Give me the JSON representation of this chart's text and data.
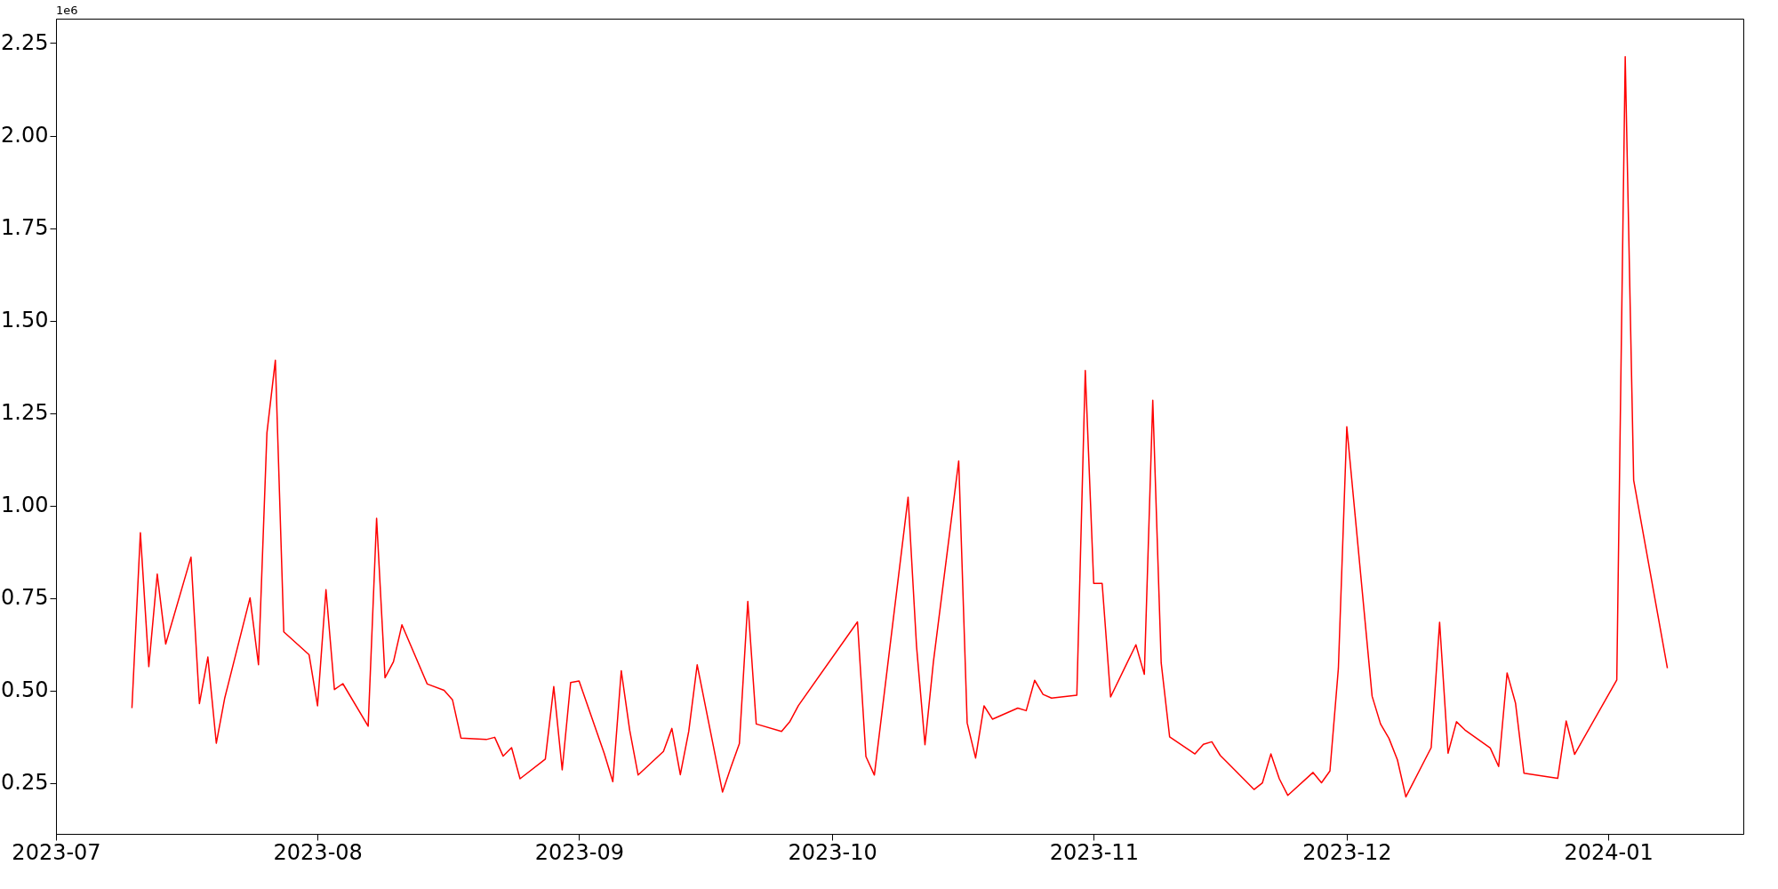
{
  "chart_data": {
    "type": "line",
    "x": [
      "2023-07-10",
      "2023-07-11",
      "2023-07-12",
      "2023-07-13",
      "2023-07-14",
      "2023-07-17",
      "2023-07-18",
      "2023-07-19",
      "2023-07-20",
      "2023-07-21",
      "2023-07-24",
      "2023-07-25",
      "2023-07-26",
      "2023-07-27",
      "2023-07-28",
      "2023-07-31",
      "2023-08-01",
      "2023-08-02",
      "2023-08-03",
      "2023-08-04",
      "2023-08-07",
      "2023-08-08",
      "2023-08-09",
      "2023-08-10",
      "2023-08-11",
      "2023-08-14",
      "2023-08-16",
      "2023-08-17",
      "2023-08-18",
      "2023-08-21",
      "2023-08-22",
      "2023-08-23",
      "2023-08-24",
      "2023-08-25",
      "2023-08-28",
      "2023-08-29",
      "2023-08-30",
      "2023-08-31",
      "2023-09-01",
      "2023-09-04",
      "2023-09-05",
      "2023-09-06",
      "2023-09-07",
      "2023-09-08",
      "2023-09-11",
      "2023-09-12",
      "2023-09-13",
      "2023-09-14",
      "2023-09-15",
      "2023-09-18",
      "2023-09-19",
      "2023-09-20",
      "2023-09-21",
      "2023-09-22",
      "2023-09-25",
      "2023-09-26",
      "2023-09-27",
      "2023-10-04",
      "2023-10-05",
      "2023-10-06",
      "2023-10-10",
      "2023-10-11",
      "2023-10-12",
      "2023-10-13",
      "2023-10-16",
      "2023-10-17",
      "2023-10-18",
      "2023-10-19",
      "2023-10-20",
      "2023-10-23",
      "2023-10-24",
      "2023-10-25",
      "2023-10-26",
      "2023-10-27",
      "2023-10-30",
      "2023-10-31",
      "2023-11-01",
      "2023-11-02",
      "2023-11-03",
      "2023-11-06",
      "2023-11-07",
      "2023-11-08",
      "2023-11-09",
      "2023-11-10",
      "2023-11-13",
      "2023-11-14",
      "2023-11-15",
      "2023-11-16",
      "2023-11-17",
      "2023-11-20",
      "2023-11-21",
      "2023-11-22",
      "2023-11-23",
      "2023-11-24",
      "2023-11-27",
      "2023-11-28",
      "2023-11-29",
      "2023-11-30",
      "2023-12-01",
      "2023-12-04",
      "2023-12-05",
      "2023-12-06",
      "2023-12-07",
      "2023-12-08",
      "2023-12-11",
      "2023-12-12",
      "2023-12-13",
      "2023-12-14",
      "2023-12-15",
      "2023-12-18",
      "2023-12-19",
      "2023-12-20",
      "2023-12-21",
      "2023-12-22",
      "2023-12-26",
      "2023-12-27",
      "2023-12-28",
      "2024-01-02",
      "2024-01-03",
      "2024-01-04",
      "2024-01-08"
    ],
    "series": [
      {
        "color": "#ff0000",
        "values": [
          0.453,
          0.927,
          0.565,
          0.815,
          0.626,
          0.861,
          0.465,
          0.591,
          0.358,
          0.48,
          0.751,
          0.57,
          1.196,
          1.393,
          0.659,
          0.597,
          0.459,
          0.773,
          0.503,
          0.519,
          0.404,
          0.966,
          0.535,
          0.578,
          0.678,
          0.518,
          0.501,
          0.475,
          0.372,
          0.368,
          0.374,
          0.323,
          0.346,
          0.262,
          0.315,
          0.511,
          0.286,
          0.522,
          0.526,
          0.329,
          0.254,
          0.554,
          0.393,
          0.272,
          0.336,
          0.398,
          0.273,
          0.39,
          0.57,
          0.226,
          0.293,
          0.357,
          0.741,
          0.41,
          0.39,
          0.417,
          0.46,
          0.686,
          0.322,
          0.272,
          1.023,
          0.62,
          0.354,
          0.578,
          1.121,
          0.413,
          0.318,
          0.459,
          0.423,
          0.453,
          0.446,
          0.528,
          0.49,
          0.48,
          0.488,
          1.365,
          0.79,
          0.79,
          0.483,
          0.624,
          0.544,
          1.285,
          0.575,
          0.375,
          0.329,
          0.355,
          0.362,
          0.325,
          0.302,
          0.233,
          0.251,
          0.329,
          0.262,
          0.217,
          0.279,
          0.251,
          0.283,
          0.56,
          1.213,
          0.485,
          0.41,
          0.371,
          0.313,
          0.213,
          0.346,
          0.685,
          0.331,
          0.416,
          0.394,
          0.345,
          0.295,
          0.548,
          0.466,
          0.277,
          0.263,
          0.418,
          0.328,
          0.529,
          2.213,
          1.069,
          0.561
        ]
      }
    ],
    "xlim": [
      "2023-07-01",
      "2024-01-17"
    ],
    "xticks": [
      "2023-07",
      "2023-08",
      "2023-09",
      "2023-10",
      "2023-11",
      "2023-12",
      "2024-01"
    ],
    "ylim": [
      0.113,
      2.316
    ],
    "yticks": [
      0.25,
      {
        "value": 0.5,
        "label": "0.50"
      },
      0.75,
      {
        "value": 1,
        "label": "1.00"
      },
      1.25,
      {
        "value": 1.5,
        "label": "1.50"
      },
      1.75,
      {
        "value": 2,
        "label": "2.00"
      },
      2.25
    ],
    "annotations": [
      "1e6"
    ],
    "grid": false,
    "marker": "none",
    "line_style": "solid"
  }
}
